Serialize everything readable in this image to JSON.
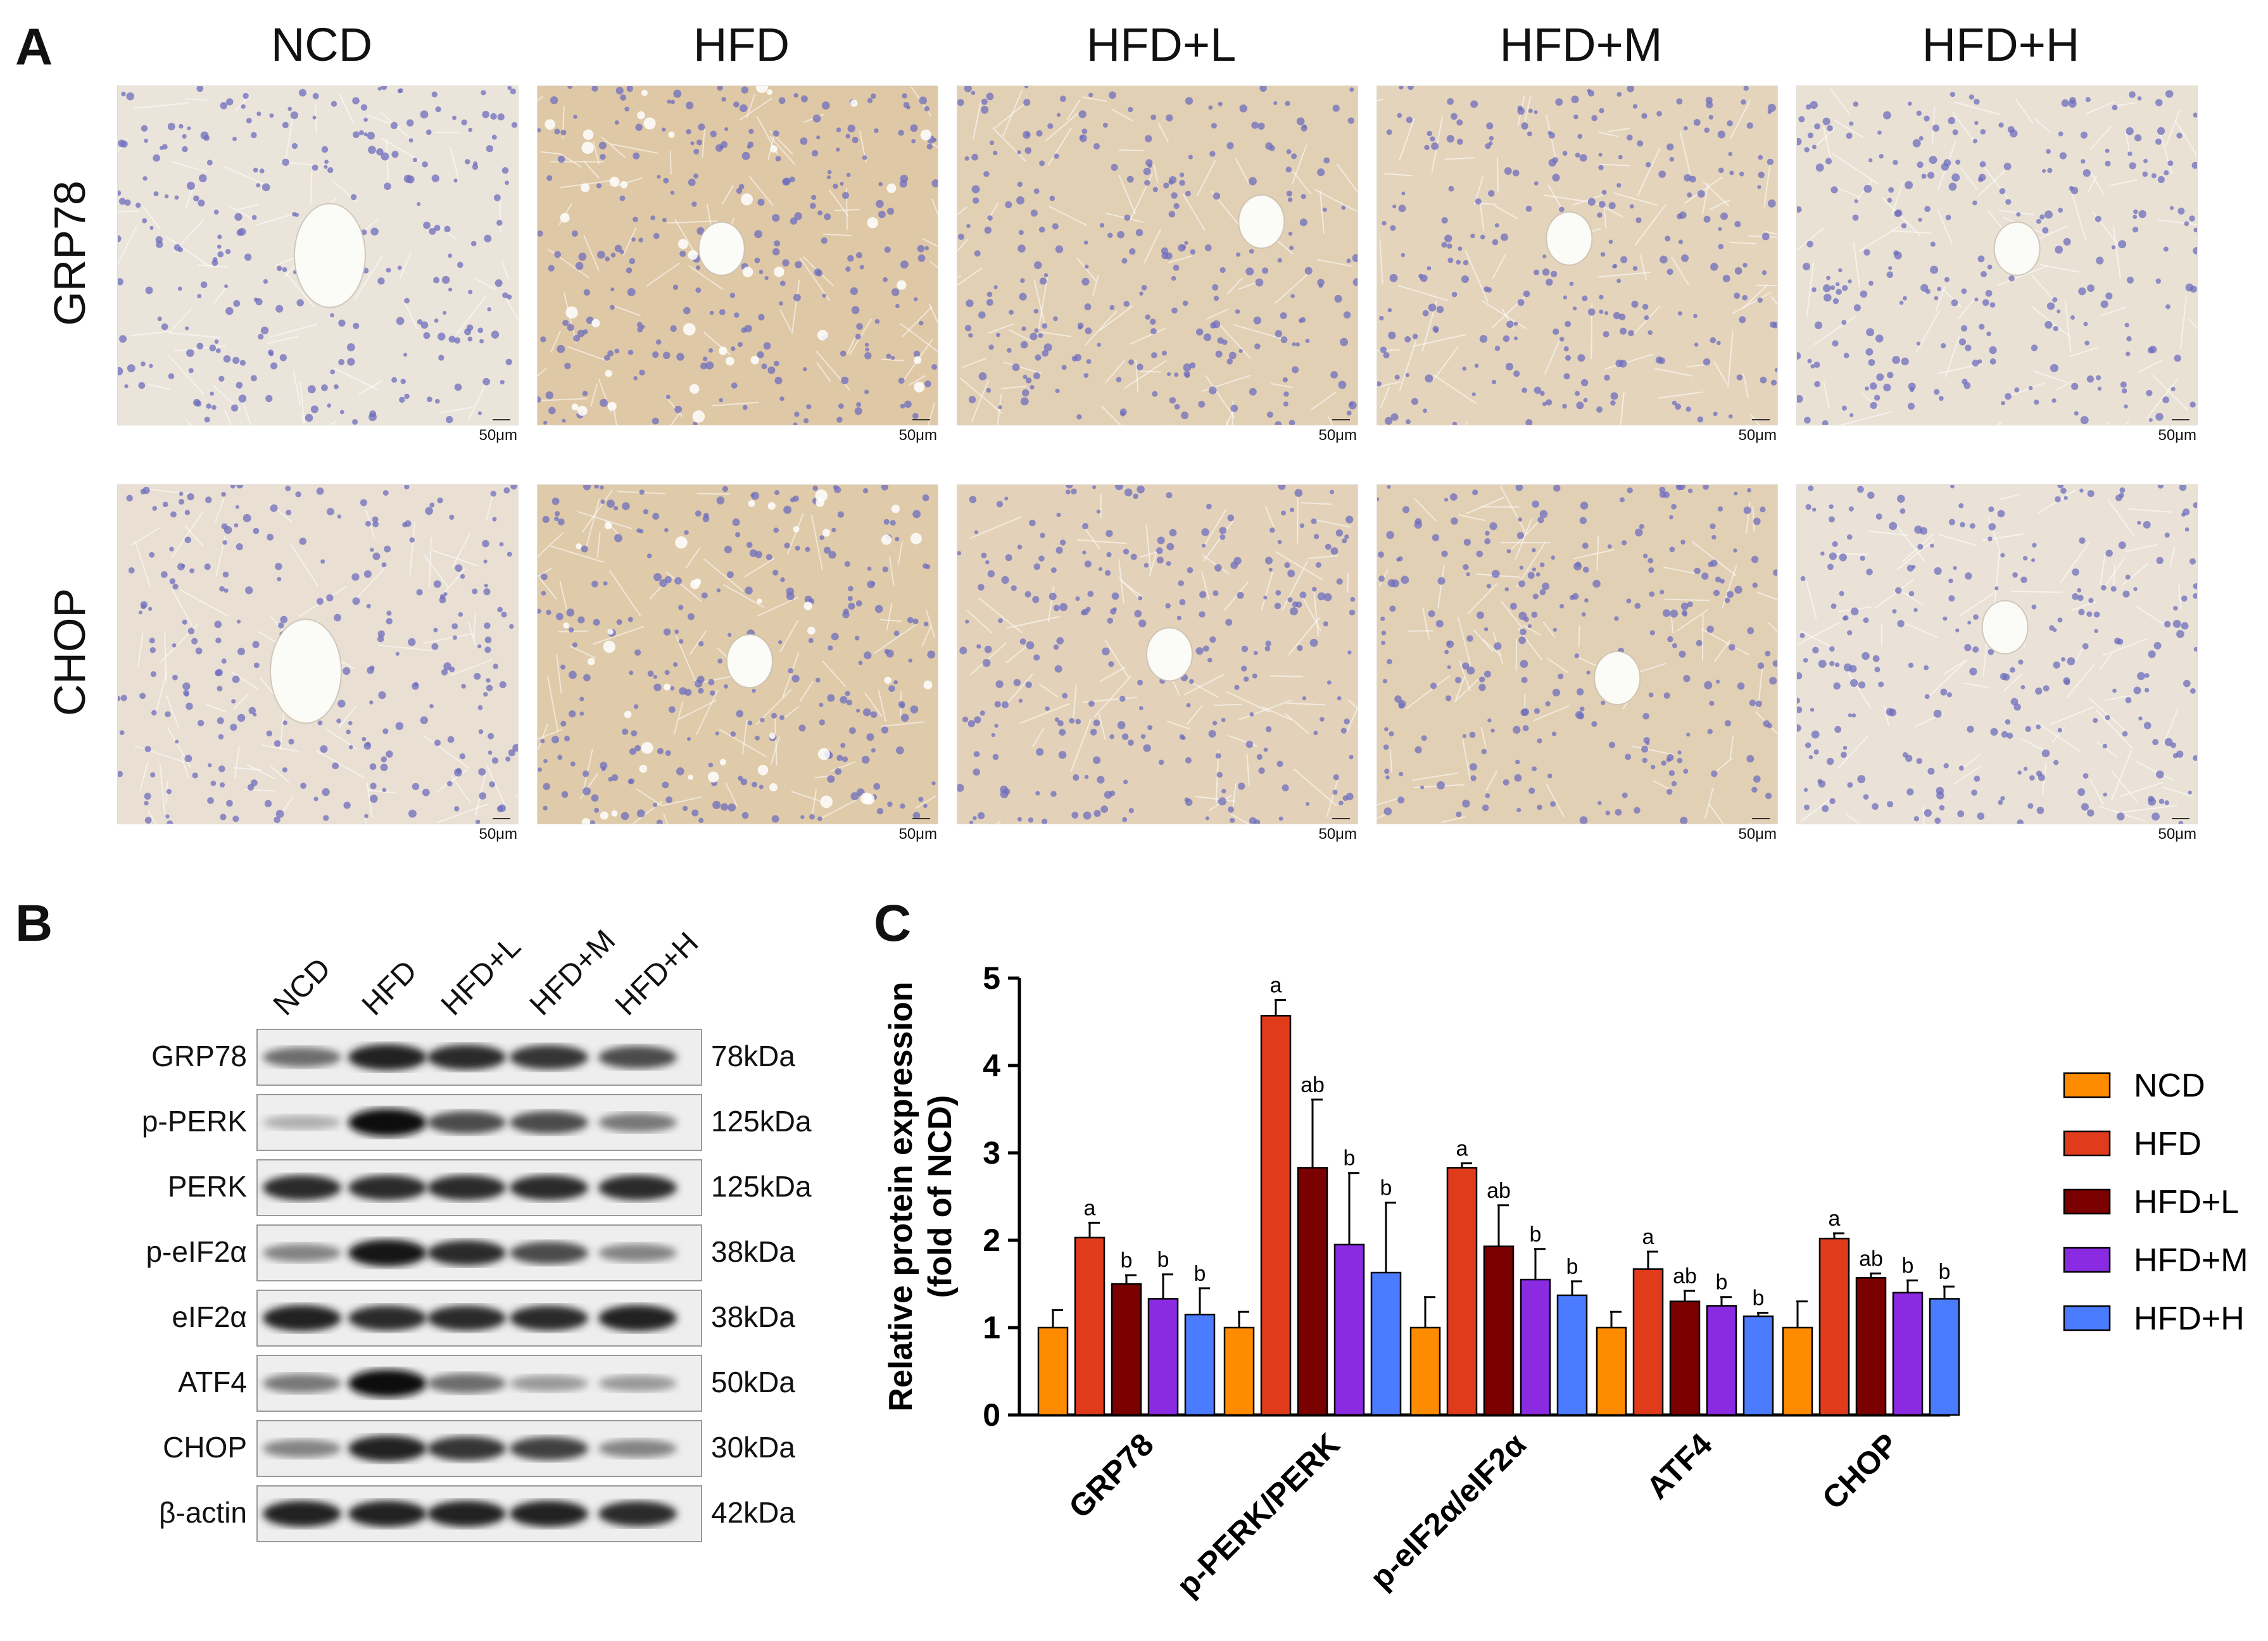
{
  "panels": {
    "a": "A",
    "b": "B",
    "c": "C"
  },
  "panel_a": {
    "columns": [
      "NCD",
      "HFD",
      "HFD+L",
      "HFD+M",
      "HFD+H"
    ],
    "rows": [
      "GRP78",
      "CHOP"
    ],
    "scale_bar": "50μm",
    "stain_intensity": {
      "GRP78": [
        0.05,
        0.75,
        0.55,
        0.45,
        0.12
      ],
      "CHOP": [
        0.15,
        0.7,
        0.5,
        0.55,
        0.1
      ]
    }
  },
  "panel_b": {
    "lanes": [
      "NCD",
      "HFD",
      "HFD+L",
      "HFD+M",
      "HFD+H"
    ],
    "blots": [
      {
        "name": "GRP78",
        "kda": "78kDa",
        "intensity": [
          0.55,
          0.9,
          0.85,
          0.8,
          0.7
        ]
      },
      {
        "name": "p-PERK",
        "kda": "125kDa",
        "intensity": [
          0.25,
          1.0,
          0.7,
          0.7,
          0.5
        ]
      },
      {
        "name": "PERK",
        "kda": "125kDa",
        "intensity": [
          0.85,
          0.85,
          0.85,
          0.85,
          0.85
        ]
      },
      {
        "name": "p-eIF2α",
        "kda": "38kDa",
        "intensity": [
          0.45,
          0.95,
          0.85,
          0.7,
          0.45
        ]
      },
      {
        "name": "eIF2α",
        "kda": "38kDa",
        "intensity": [
          0.9,
          0.85,
          0.85,
          0.85,
          0.9
        ]
      },
      {
        "name": "ATF4",
        "kda": "50kDa",
        "intensity": [
          0.5,
          1.0,
          0.55,
          0.35,
          0.35
        ]
      },
      {
        "name": "CHOP",
        "kda": "30kDa",
        "intensity": [
          0.45,
          0.9,
          0.8,
          0.75,
          0.45
        ]
      },
      {
        "name": "β-actin",
        "kda": "42kDa",
        "intensity": [
          0.9,
          0.9,
          0.9,
          0.9,
          0.85
        ]
      }
    ]
  },
  "chart_data": {
    "type": "bar",
    "title": "",
    "ylabel": "Relative protein expression (fold of NCD)",
    "ylabel_lines": [
      "Relative protein expression",
      "(fold of NCD)"
    ],
    "xlabel": "",
    "ylim": [
      0,
      5
    ],
    "yticks": [
      0,
      1,
      2,
      3,
      4,
      5
    ],
    "categories": [
      "GRP78",
      "p-PERK/PERK",
      "p-eIF2α/eIF2α",
      "ATF4",
      "CHOP"
    ],
    "legend_position": "right",
    "series": [
      {
        "name": "NCD",
        "color": "#ff8c00",
        "values": [
          1.0,
          1.0,
          1.0,
          1.0,
          1.0
        ],
        "errors": [
          0.2,
          0.18,
          0.35,
          0.18,
          0.3
        ],
        "labels": [
          "",
          "",
          "",
          "",
          ""
        ]
      },
      {
        "name": "HFD",
        "color": "#e03c1c",
        "values": [
          2.03,
          4.57,
          2.83,
          1.67,
          2.02
        ],
        "errors": [
          0.17,
          0.18,
          0.05,
          0.2,
          0.06
        ],
        "labels": [
          "a",
          "a",
          "a",
          "a",
          "a"
        ]
      },
      {
        "name": "HFD+L",
        "color": "#7b0000",
        "values": [
          1.5,
          2.83,
          1.93,
          1.3,
          1.57
        ],
        "errors": [
          0.1,
          0.78,
          0.47,
          0.12,
          0.05
        ],
        "labels": [
          "b",
          "ab",
          "ab",
          "ab",
          "ab"
        ]
      },
      {
        "name": "HFD+M",
        "color": "#8a2be2",
        "values": [
          1.33,
          1.95,
          1.55,
          1.25,
          1.4
        ],
        "errors": [
          0.28,
          0.82,
          0.35,
          0.1,
          0.14
        ],
        "labels": [
          "b",
          "b",
          "b",
          "b",
          "b"
        ]
      },
      {
        "name": "HFD+H",
        "color": "#4b7cff",
        "values": [
          1.15,
          1.63,
          1.37,
          1.13,
          1.33
        ],
        "errors": [
          0.3,
          0.8,
          0.16,
          0.04,
          0.14
        ],
        "labels": [
          "b",
          "b",
          "b",
          "b",
          "b"
        ]
      }
    ]
  }
}
